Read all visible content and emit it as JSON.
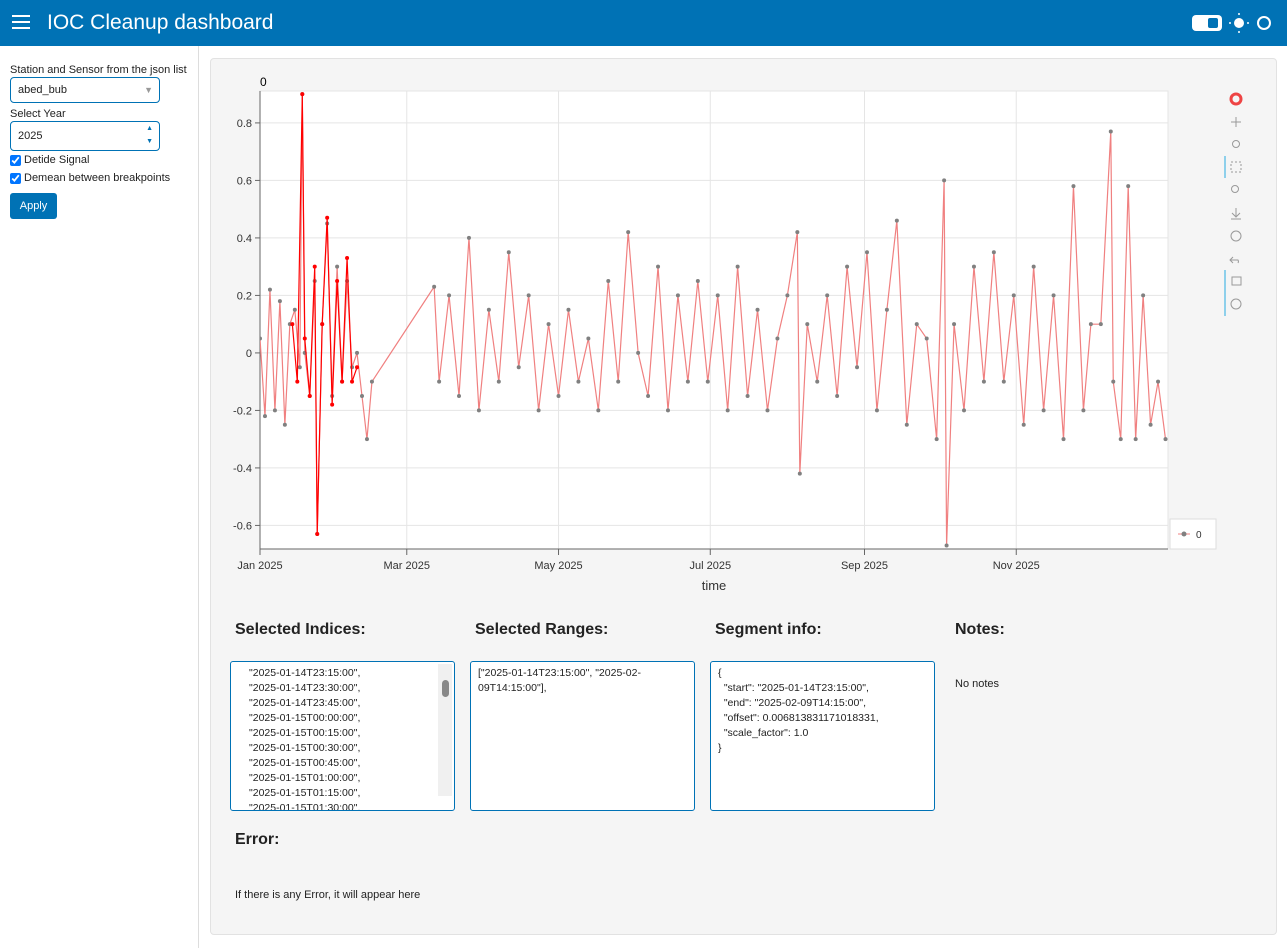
{
  "header": {
    "title": "IOC Cleanup dashboard"
  },
  "sidebar": {
    "station_label": "Station and Sensor from the json list",
    "station_value": "abed_bub",
    "year_label": "Select Year",
    "year_value": "2025",
    "checkboxes": [
      "Detide Signal",
      "Demean between breakpoints"
    ],
    "button": "Apply"
  },
  "chart_data": {
    "type": "line",
    "title": "0",
    "x_label": "time",
    "xlim": [
      "2025-01-01",
      "2026-01-01"
    ],
    "ylim": [
      -0.682,
      0.911
    ],
    "xticks": [
      {
        "value": "2025-01-01",
        "label": "Jan 2025"
      },
      {
        "value": "2025-03-01",
        "label": "Mar 2025"
      },
      {
        "value": "2025-05-01",
        "label": "May 2025"
      },
      {
        "value": "2025-07-01",
        "label": "Jul 2025"
      },
      {
        "value": "2025-09-01",
        "label": "Sep 2025"
      },
      {
        "value": "2025-11-01",
        "label": "Nov 2025"
      }
    ],
    "yticks": [
      -0.6,
      -0.4,
      -0.2,
      0,
      0.2,
      0.4,
      0.6,
      0.8
    ],
    "grid": true,
    "legend": "bottom-right",
    "series": [
      {
        "name": "0",
        "color": "#808080",
        "line_color": "#f08080",
        "x": [
          "2025-01-01",
          "2025-01-03",
          "2025-01-05",
          "2025-01-07",
          "2025-01-09",
          "2025-01-11",
          "2025-01-13",
          "2025-01-15",
          "2025-01-17",
          "2025-01-18",
          "2025-01-19",
          "2025-01-21",
          "2025-01-23",
          "2025-01-24",
          "2025-01-26",
          "2025-01-28",
          "2025-01-30",
          "2025-02-01",
          "2025-02-03",
          "2025-02-05",
          "2025-02-07",
          "2025-02-09",
          "2025-02-11",
          "2025-02-13",
          "2025-02-15",
          "2025-03-12",
          "2025-03-14",
          "2025-03-18",
          "2025-03-22",
          "2025-03-26",
          "2025-03-30",
          "2025-04-03",
          "2025-04-07",
          "2025-04-11",
          "2025-04-15",
          "2025-04-19",
          "2025-04-23",
          "2025-04-27",
          "2025-05-01",
          "2025-05-05",
          "2025-05-09",
          "2025-05-13",
          "2025-05-17",
          "2025-05-21",
          "2025-05-25",
          "2025-05-29",
          "2025-06-02",
          "2025-06-06",
          "2025-06-10",
          "2025-06-14",
          "2025-06-18",
          "2025-06-22",
          "2025-06-26",
          "2025-06-30",
          "2025-07-04",
          "2025-07-08",
          "2025-07-12",
          "2025-07-16",
          "2025-07-20",
          "2025-07-24",
          "2025-07-28",
          "2025-08-01",
          "2025-08-05",
          "2025-08-06",
          "2025-08-09",
          "2025-08-13",
          "2025-08-17",
          "2025-08-21",
          "2025-08-25",
          "2025-08-29",
          "2025-09-02",
          "2025-09-06",
          "2025-09-10",
          "2025-09-14",
          "2025-09-18",
          "2025-09-22",
          "2025-09-26",
          "2025-09-30",
          "2025-10-03",
          "2025-10-04",
          "2025-10-07",
          "2025-10-11",
          "2025-10-15",
          "2025-10-19",
          "2025-10-23",
          "2025-10-27",
          "2025-10-31",
          "2025-11-04",
          "2025-11-08",
          "2025-11-12",
          "2025-11-16",
          "2025-11-20",
          "2025-11-24",
          "2025-11-28",
          "2025-12-01",
          "2025-12-05",
          "2025-12-09",
          "2025-12-10",
          "2025-12-13",
          "2025-12-16",
          "2025-12-19",
          "2025-12-22",
          "2025-12-25",
          "2025-12-28",
          "2025-12-31"
        ],
        "values": [
          0.05,
          -0.22,
          0.22,
          -0.2,
          0.18,
          -0.25,
          0.1,
          0.15,
          -0.05,
          0.9,
          0.0,
          -0.15,
          0.25,
          -0.63,
          0.1,
          0.45,
          -0.15,
          0.3,
          -0.1,
          0.25,
          -0.05,
          0.0,
          -0.15,
          -0.3,
          -0.1,
          0.23,
          -0.1,
          0.2,
          -0.15,
          0.4,
          -0.2,
          0.15,
          -0.1,
          0.35,
          -0.05,
          0.2,
          -0.2,
          0.1,
          -0.15,
          0.15,
          -0.1,
          0.05,
          -0.2,
          0.25,
          -0.1,
          0.42,
          0.0,
          -0.15,
          0.3,
          -0.2,
          0.2,
          -0.1,
          0.25,
          -0.1,
          0.2,
          -0.2,
          0.3,
          -0.15,
          0.15,
          -0.2,
          0.05,
          0.2,
          0.42,
          -0.42,
          0.1,
          -0.1,
          0.2,
          -0.15,
          0.3,
          -0.05,
          0.35,
          -0.2,
          0.15,
          0.46,
          -0.25,
          0.1,
          0.05,
          -0.3,
          0.6,
          -0.67,
          0.1,
          -0.2,
          0.3,
          -0.1,
          0.35,
          -0.1,
          0.2,
          -0.25,
          0.3,
          -0.2,
          0.2,
          -0.3,
          0.58,
          -0.2,
          0.1,
          0.1,
          0.77,
          -0.1,
          -0.3,
          0.58,
          -0.3,
          0.2,
          -0.25,
          -0.1,
          -0.3
        ]
      },
      {
        "color": "#ff0000",
        "x": [
          "2025-01-14",
          "2025-01-16",
          "2025-01-18",
          "2025-01-19",
          "2025-01-21",
          "2025-01-23",
          "2025-01-24",
          "2025-01-26",
          "2025-01-28",
          "2025-01-30",
          "2025-02-01",
          "2025-02-03",
          "2025-02-05",
          "2025-02-07",
          "2025-02-09"
        ],
        "values": [
          0.1,
          -0.1,
          0.9,
          0.05,
          -0.15,
          0.3,
          -0.63,
          0.1,
          0.47,
          -0.18,
          0.25,
          -0.1,
          0.33,
          -0.1,
          -0.05
        ]
      }
    ]
  },
  "panels": {
    "indices": {
      "title": "Selected Indices:",
      "lines": [
        "\"2025-01-14T23:15:00\",",
        "\"2025-01-14T23:30:00\",",
        "\"2025-01-14T23:45:00\",",
        "\"2025-01-15T00:00:00\",",
        "\"2025-01-15T00:15:00\",",
        "\"2025-01-15T00:30:00\",",
        "\"2025-01-15T00:45:00\",",
        "\"2025-01-15T01:00:00\",",
        "\"2025-01-15T01:15:00\",",
        "\"2025-01-15T01:30:00\","
      ]
    },
    "ranges": {
      "title": "Selected Ranges:",
      "text": "[\"2025-01-14T23:15:00\", \"2025-02-09T14:15:00\"],"
    },
    "segment": {
      "title": "Segment info:",
      "lines": [
        "{",
        "  \"start\": \"2025-01-14T23:15:00\",",
        "  \"end\": \"2025-02-09T14:15:00\",",
        "  \"offset\": 0.006813831171018331,",
        "  \"scale_factor\": 1.0",
        "}"
      ]
    },
    "notes": {
      "title": "Notes:",
      "text": "No notes"
    },
    "error": {
      "title": "Error:",
      "text": "If there is any Error, it will appear here"
    }
  }
}
